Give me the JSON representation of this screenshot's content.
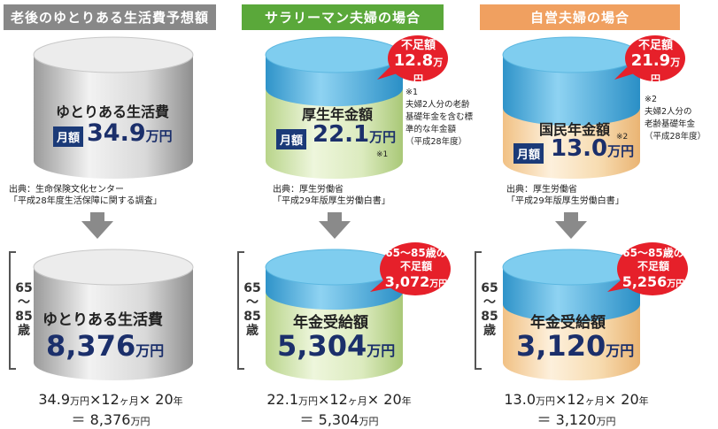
{
  "columns": [
    {
      "header": "老後のゆとりある生活費予想額",
      "header_color": "#888888",
      "top": {
        "title": "ゆとりある生活費",
        "tag": "月額",
        "value": "34.9",
        "unit": "万円",
        "note_mark": ""
      },
      "source": [
        "出典：生命保険文化センター",
        "「平成28年度生活保障に関する調査」"
      ],
      "note": [],
      "shortfall": null,
      "bottom": {
        "title": "ゆとりある生活費",
        "value": "8,376",
        "unit": "万円"
      },
      "age": [
        "65",
        "～",
        "85",
        "歳"
      ],
      "calc": {
        "line1_a": "34.9",
        "u1": "万円",
        "x1": "×12",
        "u2": "ヶ月",
        "x2": "× 20",
        "u3": "年",
        "line2": "＝ 8,376",
        "u4": "万円"
      }
    },
    {
      "header": "サラリーマン夫婦の場合",
      "header_color": "#5aa83a",
      "top": {
        "title": "厚生年金額",
        "tag": "月額",
        "value": "22.1",
        "unit": "万円",
        "note_mark": "※1"
      },
      "source": [
        "出典：厚生労働省",
        "「平成29年版厚生労働白書」"
      ],
      "note": [
        "※1",
        "夫婦2人分の老齢",
        "基礎年金を含む標",
        "準的な年金額",
        "（平成28年度）"
      ],
      "shortfall": {
        "label": "不足額",
        "value": "12.8",
        "unit": "万円"
      },
      "bottom": {
        "title": "年金受給額",
        "value": "5,304",
        "unit": "万円"
      },
      "bottom_shortfall": {
        "label1": "65～85歳の",
        "label2": "不足額",
        "value": "3,072",
        "unit": "万円"
      },
      "age": [
        "65",
        "～",
        "85",
        "歳"
      ],
      "calc": {
        "line1_a": "22.1",
        "u1": "万円",
        "x1": "×12",
        "u2": "ヶ月",
        "x2": "× 20",
        "u3": "年",
        "line2": "＝ 5,304",
        "u4": "万円"
      }
    },
    {
      "header": "自営夫婦の場合",
      "header_color": "#f0a060",
      "top": {
        "title": "国民年金額",
        "tag": "月額",
        "value": "13.0",
        "unit": "万円",
        "note_mark": "※2"
      },
      "source": [
        "出典：厚生労働省",
        "「平成29年版厚生労働白書」"
      ],
      "note": [
        "※2",
        "夫婦2人分の",
        "老齢基礎年金",
        "（平成28年度）"
      ],
      "shortfall": {
        "label": "不足額",
        "value": "21.9",
        "unit": "万円"
      },
      "bottom": {
        "title": "年金受給額",
        "value": "3,120",
        "unit": "万円"
      },
      "bottom_shortfall": {
        "label1": "65～85歳の",
        "label2": "不足額",
        "value": "5,256",
        "unit": "万円"
      },
      "age": [
        "65",
        "～",
        "85",
        "歳"
      ],
      "calc": {
        "line1_a": "13.0",
        "u1": "万円",
        "x1": "×12",
        "u2": "ヶ月",
        "x2": "× 20",
        "u3": "年",
        "line2": "＝ 3,120",
        "u4": "万円"
      }
    }
  ],
  "colors": {
    "shortfall_red": "#e6202a",
    "value_navy": "#1b2f6b",
    "cyan_top": "#3fa9dc"
  }
}
